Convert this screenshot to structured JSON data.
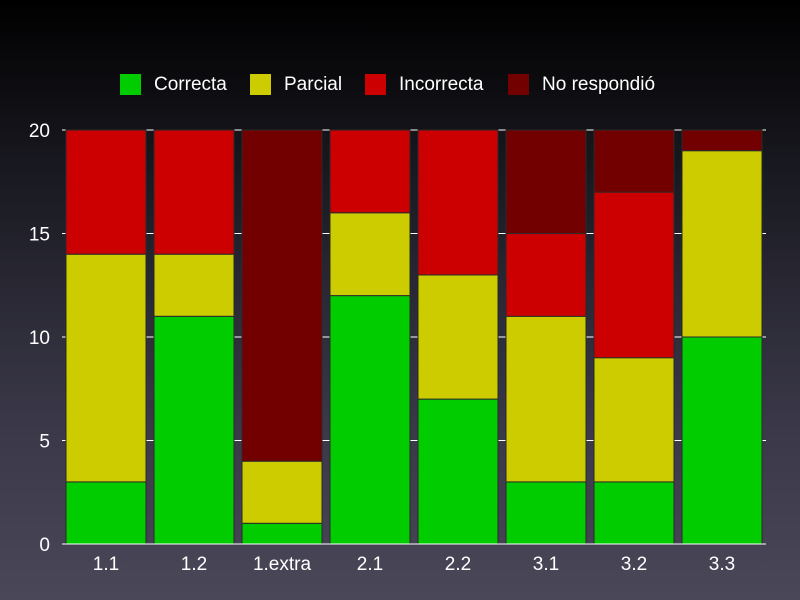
{
  "chart_data": {
    "type": "bar",
    "stacked": true,
    "categories": [
      "1.1",
      "1.2",
      "1.extra",
      "2.1",
      "2.2",
      "3.1",
      "3.2",
      "3.3"
    ],
    "series": [
      {
        "name": "Correcta",
        "color": "#00cc00",
        "values": [
          3,
          11,
          1,
          12,
          7,
          3,
          3,
          10
        ]
      },
      {
        "name": "Parcial",
        "color": "#cccc00",
        "values": [
          11,
          3,
          3,
          4,
          6,
          8,
          6,
          9
        ]
      },
      {
        "name": "Incorrecta",
        "color": "#cc0000",
        "values": [
          6,
          6,
          0,
          4,
          7,
          4,
          8,
          0
        ]
      },
      {
        "name": "No respondió",
        "color": "#730000",
        "values": [
          0,
          0,
          16,
          0,
          0,
          5,
          3,
          1
        ]
      }
    ],
    "ylim": [
      0,
      20
    ],
    "yticks": [
      0,
      5,
      10,
      15,
      20
    ],
    "grid": true,
    "legend_position": "top"
  }
}
